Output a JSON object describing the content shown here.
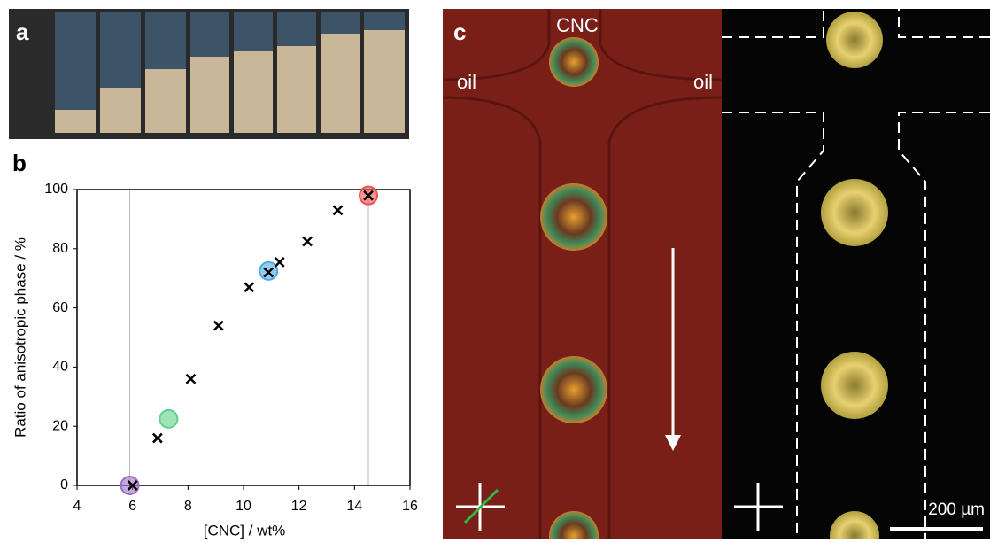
{
  "panels": {
    "a": "a",
    "b": "b",
    "c": "c",
    "cnc": "CNC",
    "oil_left": "oil",
    "oil_right": "oil",
    "scale_bar": "200 µm"
  },
  "chart_data": {
    "type": "scatter",
    "x_label": "[CNC] / wt%",
    "y_label": "Ratio of anisotropic phase / %",
    "xlim": [
      4,
      16
    ],
    "xticks": [
      4,
      6,
      8,
      10,
      12,
      14,
      16
    ],
    "ylim": [
      0,
      100
    ],
    "yticks": [
      0,
      20,
      40,
      60,
      80,
      100
    ],
    "vlines": [
      5.9,
      14.5
    ],
    "vline_color": "#bbbbbb",
    "series": [
      {
        "marker": "x",
        "color": "#000000",
        "x": [
          6,
          6.9,
          8.1,
          9.1,
          10.2,
          10.9,
          11.3,
          12.3,
          13.4,
          14.5
        ],
        "values": [
          0,
          16,
          36,
          54,
          67,
          72,
          75.5,
          82.5,
          93,
          98
        ]
      },
      {
        "marker": "circle",
        "color": "#9b6fc4",
        "x": [
          5.9
        ],
        "values": [
          0
        ]
      },
      {
        "marker": "circle",
        "color": "#5fd08a",
        "x": [
          7.3
        ],
        "values": [
          22.5
        ]
      },
      {
        "marker": "circle",
        "color": "#4fa8e6",
        "x": [
          10.9
        ],
        "values": [
          72.5
        ]
      },
      {
        "marker": "circle",
        "color": "#f05050",
        "x": [
          14.5
        ],
        "values": [
          98
        ]
      }
    ]
  }
}
